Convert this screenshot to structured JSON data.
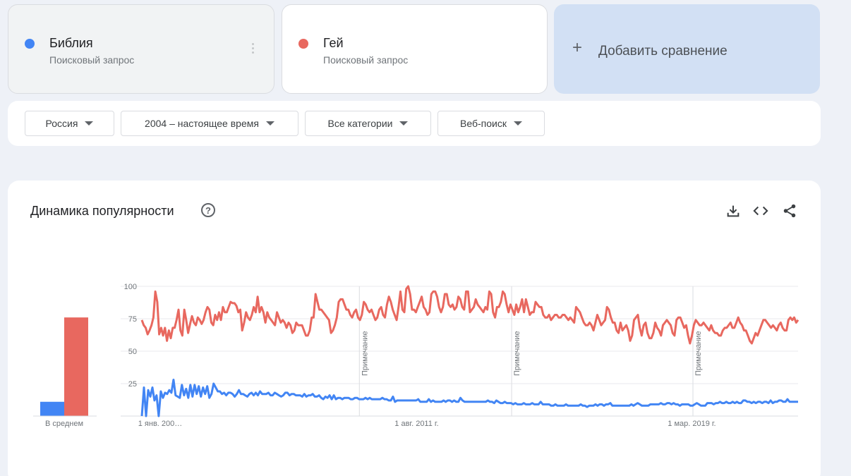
{
  "terms": [
    {
      "name": "Библия",
      "subtitle": "Поисковый запрос",
      "color": "#4285f4"
    },
    {
      "name": "Гей",
      "subtitle": "Поисковый запрос",
      "color": "#e8685f"
    }
  ],
  "add_comparison": {
    "icon": "plus-icon",
    "label": "Добавить сравнение"
  },
  "filters": [
    {
      "label": "Россия"
    },
    {
      "label": "2004 – настоящее время"
    },
    {
      "label": "Все категории"
    },
    {
      "label": "Веб-поиск"
    }
  ],
  "chart_title": "Динамика популярности",
  "help_icon": "help-icon",
  "tools": [
    "download-icon",
    "embed-code-icon",
    "share-icon"
  ],
  "chart_data": {
    "type": "line",
    "ylim": [
      0,
      100
    ],
    "yticks": [
      "100",
      "75",
      "50",
      "25"
    ],
    "x_date_labels": [
      "1 янв. 200…",
      "1 авг. 2011 г.",
      "1 мар. 2019 г."
    ],
    "x_range": [
      2004.0,
      2022.1
    ],
    "x_date_ticks": [
      2004.0,
      2011.58,
      2019.17
    ],
    "notes": [
      {
        "x": 2010.0,
        "label": "Примечание"
      },
      {
        "x": 2014.2,
        "label": "Примечание"
      },
      {
        "x": 2019.2,
        "label": "Примечание"
      }
    ],
    "average": {
      "label": "В среднем",
      "values": [
        11,
        76
      ]
    },
    "series": [
      {
        "name": "Библия",
        "color": "#4285f4",
        "values": [
          0,
          22,
          0,
          20,
          15,
          22,
          12,
          16,
          0,
          19,
          14,
          18,
          17,
          20,
          18,
          28,
          16,
          15,
          14,
          24,
          16,
          21,
          14,
          24,
          15,
          24,
          17,
          23,
          15,
          22,
          17,
          23,
          14,
          17,
          25,
          22,
          19,
          19,
          17,
          18,
          16,
          18,
          18,
          17,
          15,
          17,
          20,
          17,
          17,
          16,
          15,
          17,
          18,
          16,
          18,
          16,
          19,
          17,
          17,
          17,
          18,
          16,
          16,
          18,
          17,
          16,
          15,
          16,
          18,
          18,
          16,
          17,
          17,
          16,
          16,
          16,
          15,
          17,
          15,
          16,
          16,
          17,
          15,
          15,
          16,
          14,
          13,
          15,
          14,
          16,
          13,
          16,
          13,
          14,
          14,
          13,
          14,
          14,
          14,
          13,
          13,
          14,
          14,
          13,
          13,
          13,
          14,
          13,
          14,
          13,
          13,
          13,
          13,
          13,
          14,
          13,
          13,
          12,
          12,
          15,
          11,
          12,
          12,
          12,
          12,
          12,
          12,
          12,
          12,
          12,
          12,
          13,
          11,
          11,
          11,
          11,
          13,
          11,
          12,
          11,
          11,
          11,
          11,
          12,
          11,
          12,
          12,
          11,
          12,
          11,
          11,
          14,
          12,
          11,
          11,
          11,
          11,
          11,
          11,
          11,
          11,
          11,
          11,
          11,
          12,
          11,
          11,
          10,
          12,
          11,
          10,
          10,
          11,
          10,
          10,
          10,
          9,
          10,
          9,
          9,
          9,
          10,
          9,
          9,
          9,
          10,
          9,
          9,
          9,
          11,
          9,
          9,
          9,
          9,
          8,
          8,
          9,
          8,
          8,
          8,
          8,
          9,
          8,
          8,
          8,
          8,
          8,
          8,
          9,
          8,
          8,
          7,
          8,
          8,
          8,
          9,
          8,
          9,
          9,
          8,
          9,
          9,
          10,
          8,
          8,
          8,
          8,
          8,
          8,
          8,
          8,
          8,
          9,
          8,
          9,
          10,
          9,
          8,
          8,
          8,
          8,
          9,
          9,
          9,
          9,
          9,
          10,
          9,
          9,
          10,
          10,
          9,
          10,
          9,
          9,
          8,
          9,
          9,
          9,
          9,
          8,
          8,
          9,
          10,
          9,
          8,
          8,
          8,
          10,
          10,
          10,
          9,
          10,
          10,
          11,
          10,
          10,
          11,
          10,
          10,
          11,
          10,
          11,
          10,
          10,
          12,
          12,
          11,
          11,
          10,
          11,
          10,
          11,
          11,
          10,
          11,
          11,
          10,
          12,
          10,
          11,
          11,
          12,
          12,
          11,
          11,
          13,
          11,
          11,
          11,
          11,
          11
        ]
      },
      {
        "name": "Гей",
        "color": "#e8685f",
        "values": [
          74,
          70,
          68,
          63,
          66,
          70,
          76,
          96,
          88,
          63,
          68,
          62,
          68,
          58,
          66,
          60,
          68,
          68,
          74,
          82,
          66,
          62,
          82,
          74,
          64,
          71,
          77,
          72,
          70,
          76,
          74,
          71,
          74,
          80,
          84,
          82,
          72,
          70,
          78,
          74,
          80,
          74,
          84,
          80,
          80,
          84,
          88,
          87,
          87,
          85,
          80,
          82,
          66,
          72,
          80,
          76,
          74,
          78,
          84,
          80,
          92,
          80,
          84,
          80,
          72,
          80,
          76,
          74,
          72,
          70,
          80,
          76,
          72,
          74,
          72,
          68,
          72,
          70,
          64,
          66,
          72,
          70,
          70,
          70,
          66,
          62,
          62,
          66,
          76,
          76,
          94,
          88,
          82,
          82,
          80,
          78,
          76,
          74,
          64,
          66,
          70,
          76,
          88,
          90,
          90,
          86,
          82,
          82,
          78,
          76,
          80,
          82,
          76,
          74,
          78,
          88,
          86,
          82,
          80,
          82,
          78,
          74,
          76,
          82,
          84,
          78,
          76,
          86,
          92,
          88,
          82,
          78,
          74,
          84,
          96,
          82,
          80,
          98,
          100,
          94,
          82,
          82,
          80,
          84,
          88,
          92,
          84,
          82,
          78,
          80,
          94,
          96,
          96,
          92,
          84,
          80,
          84,
          94,
          94,
          86,
          84,
          86,
          82,
          84,
          92,
          90,
          84,
          82,
          96,
          96,
          80,
          82,
          84,
          90,
          86,
          84,
          82,
          80,
          84,
          82,
          96,
          94,
          80,
          76,
          84,
          84,
          88,
          96,
          94,
          86,
          80,
          86,
          82,
          78,
          86,
          80,
          84,
          90,
          80,
          90,
          84,
          78,
          80,
          80,
          88,
          86,
          84,
          84,
          78,
          76,
          76,
          78,
          74,
          76,
          78,
          78,
          76,
          76,
          78,
          78,
          76,
          74,
          76,
          74,
          72,
          84,
          82,
          80,
          76,
          72,
          70,
          70,
          72,
          70,
          66,
          72,
          78,
          74,
          70,
          72,
          74,
          84,
          82,
          76,
          72,
          72,
          66,
          64,
          72,
          66,
          68,
          70,
          66,
          58,
          62,
          74,
          76,
          78,
          68,
          62,
          70,
          72,
          64,
          60,
          60,
          64,
          72,
          68,
          66,
          62,
          70,
          72,
          74,
          72,
          70,
          64,
          62,
          74,
          76,
          76,
          72,
          68,
          70,
          62,
          56,
          62,
          70,
          74,
          72,
          70,
          70,
          72,
          70,
          68,
          66,
          70,
          66,
          64,
          64,
          62,
          62,
          66,
          68,
          68,
          70,
          72,
          68,
          68,
          72,
          76,
          72,
          70,
          66,
          66,
          62,
          58,
          56,
          60,
          64,
          62,
          66,
          70,
          74,
          74,
          72,
          70,
          68,
          70,
          68,
          66,
          70,
          72,
          68,
          66,
          66,
          74,
          76,
          74,
          76,
          72,
          74
        ]
      }
    ]
  }
}
